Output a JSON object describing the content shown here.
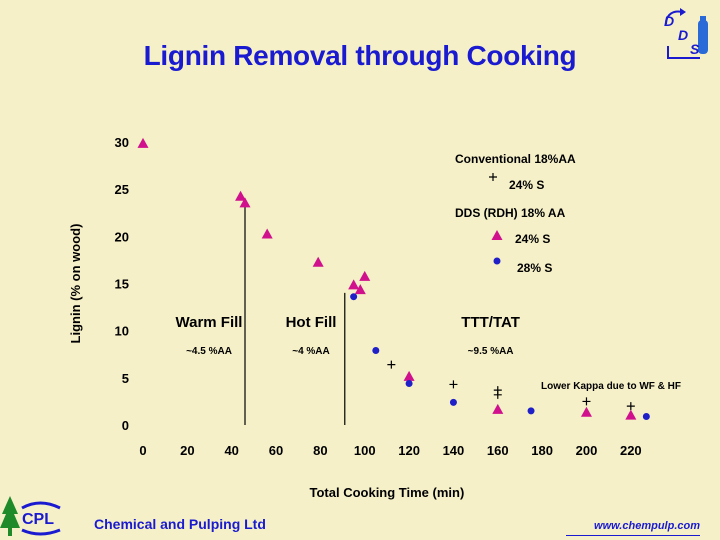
{
  "slide": {
    "title": "Lignin Removal through Cooking",
    "footer_company": "Chemical and Pulping Ltd",
    "footer_url": "www.chempulp.com",
    "logo_letters": {
      "d1": "D",
      "d2": "D",
      "s": "S"
    },
    "logo_cpl": "CPL"
  },
  "colors": {
    "title": "#1a1ad0",
    "background": "#f5f0c8",
    "triangle": "#d0108c",
    "circle": "#2020c8",
    "plus": "#000000"
  },
  "chart_data": {
    "type": "scatter",
    "title": "Lignin Removal through Cooking",
    "xlabel": "Total Cooking Time (min)",
    "ylabel": "Lignin (% on wood)",
    "xlim": [
      0,
      230
    ],
    "ylim": [
      0,
      30
    ],
    "xticks": [
      0,
      20,
      40,
      60,
      80,
      100,
      120,
      140,
      160,
      180,
      200,
      220
    ],
    "yticks": [
      0,
      5,
      10,
      15,
      20,
      25,
      30
    ],
    "grid": false,
    "legend_position": "top-right",
    "legend": {
      "group1": "Conventional 18%AA",
      "group2": "DDS (RDH) 18% AA"
    },
    "series": [
      {
        "name": "24% S",
        "group": "Conventional 18%AA",
        "marker": "plus",
        "points": [
          [
            112,
            6.4
          ],
          [
            140,
            4.3
          ],
          [
            160,
            3.7
          ],
          [
            160,
            3.2
          ],
          [
            200,
            2.5
          ],
          [
            220,
            2.0
          ]
        ]
      },
      {
        "name": "24% S",
        "group": "DDS (RDH) 18% AA",
        "marker": "triangle",
        "points": [
          [
            0,
            29.8
          ],
          [
            44,
            24.2
          ],
          [
            46,
            23.5
          ],
          [
            56,
            20.2
          ],
          [
            79,
            17.2
          ],
          [
            95,
            14.8
          ],
          [
            98,
            14.3
          ],
          [
            100,
            15.7
          ],
          [
            120,
            5.1
          ],
          [
            160,
            1.6
          ],
          [
            200,
            1.3
          ],
          [
            220,
            1.0
          ]
        ]
      },
      {
        "name": "28% S",
        "group": "DDS (RDH) 18% AA",
        "marker": "circle",
        "points": [
          [
            95,
            13.6
          ],
          [
            105,
            7.9
          ],
          [
            120,
            4.4
          ],
          [
            140,
            2.4
          ],
          [
            175,
            1.5
          ],
          [
            227,
            0.9
          ]
        ]
      }
    ],
    "phase_dividers": [
      46,
      91
    ],
    "phases": [
      {
        "name": "Warm Fill",
        "note": "~4.5 %AA",
        "x": 23,
        "y": 11.0
      },
      {
        "name": "Hot Fill",
        "note": "~4 %AA",
        "x": 69,
        "y": 11.0
      },
      {
        "name": "TTT/TAT",
        "note": "~9.5 %AA",
        "x": 150,
        "y": 11.0
      }
    ],
    "annotation": "Lower Kappa due to WF & HF"
  }
}
